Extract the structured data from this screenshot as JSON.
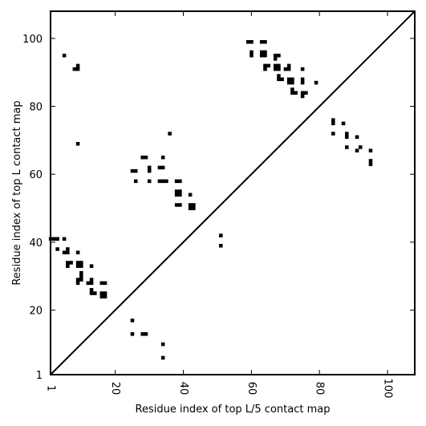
{
  "chart_data": {
    "type": "scatter",
    "title": "",
    "xlabel": "Residue index of top L/5 contact map",
    "ylabel": "Residue index of top L contact map",
    "xlim": [
      1,
      108
    ],
    "ylim": [
      1,
      108
    ],
    "xticks": [
      1,
      20,
      40,
      60,
      80,
      100
    ],
    "yticks": [
      1,
      20,
      40,
      60,
      80,
      100
    ],
    "xtick_labels": [
      "1",
      "20",
      "40",
      "60",
      "80",
      "100"
    ],
    "ytick_labels": [
      "1",
      "20",
      "40",
      "60",
      "80",
      "100"
    ],
    "grid": false,
    "diagonal": {
      "from": [
        1,
        1
      ],
      "to": [
        108,
        108
      ]
    },
    "upper_triangle_points": [
      [
        5,
        95
      ],
      [
        9,
        92
      ],
      [
        8,
        91
      ],
      [
        9,
        91
      ],
      [
        9,
        69
      ],
      [
        1,
        41
      ],
      [
        2,
        41
      ],
      [
        3,
        41
      ],
      [
        5,
        41
      ],
      [
        3,
        38
      ],
      [
        5,
        37
      ],
      [
        6,
        38
      ],
      [
        6,
        37
      ],
      [
        9,
        37
      ],
      [
        6,
        34
      ],
      [
        7,
        34
      ],
      [
        6,
        33
      ],
      [
        9,
        34
      ],
      [
        10,
        34
      ],
      [
        9,
        33
      ],
      [
        10,
        33
      ],
      [
        13,
        33
      ],
      [
        10,
        31
      ],
      [
        10,
        30
      ],
      [
        9,
        29
      ],
      [
        10,
        29
      ],
      [
        9,
        28
      ],
      [
        12,
        28
      ],
      [
        13,
        28
      ],
      [
        13,
        29
      ],
      [
        13,
        26
      ],
      [
        13,
        25
      ],
      [
        14,
        25
      ],
      [
        16,
        28
      ],
      [
        17,
        28
      ],
      [
        16,
        25
      ],
      [
        17,
        25
      ],
      [
        16,
        24
      ],
      [
        17,
        24
      ],
      [
        25,
        61
      ],
      [
        26,
        61
      ],
      [
        26,
        58
      ],
      [
        28,
        65
      ],
      [
        29,
        65
      ],
      [
        30,
        62
      ],
      [
        30,
        61
      ],
      [
        30,
        58
      ],
      [
        33,
        62
      ],
      [
        34,
        62
      ],
      [
        34,
        65
      ],
      [
        33,
        58
      ],
      [
        34,
        58
      ],
      [
        35,
        58
      ],
      [
        36,
        72
      ],
      [
        38,
        58
      ],
      [
        39,
        58
      ],
      [
        38,
        55
      ],
      [
        39,
        55
      ],
      [
        38,
        54
      ],
      [
        39,
        54
      ],
      [
        38,
        51
      ],
      [
        39,
        51
      ],
      [
        42,
        54
      ],
      [
        42,
        51
      ],
      [
        43,
        51
      ],
      [
        42,
        50
      ],
      [
        43,
        50
      ],
      [
        51,
        42
      ],
      [
        51,
        39
      ],
      [
        59,
        99
      ],
      [
        60,
        99
      ],
      [
        63,
        99
      ],
      [
        64,
        99
      ],
      [
        60,
        96
      ],
      [
        60,
        95
      ],
      [
        63,
        96
      ],
      [
        64,
        96
      ],
      [
        63,
        95
      ],
      [
        64,
        95
      ],
      [
        64,
        92
      ],
      [
        65,
        92
      ],
      [
        64,
        91
      ],
      [
        67,
        95
      ],
      [
        68,
        95
      ],
      [
        67,
        94
      ],
      [
        67,
        92
      ],
      [
        68,
        92
      ],
      [
        67,
        91
      ],
      [
        68,
        91
      ],
      [
        68,
        89
      ],
      [
        68,
        88
      ],
      [
        69,
        88
      ],
      [
        70,
        91
      ],
      [
        71,
        91
      ],
      [
        71,
        92
      ],
      [
        71,
        88
      ],
      [
        72,
        88
      ],
      [
        71,
        87
      ],
      [
        72,
        87
      ],
      [
        72,
        85
      ],
      [
        72,
        84
      ],
      [
        73,
        84
      ],
      [
        75,
        91
      ],
      [
        75,
        88
      ],
      [
        75,
        87
      ],
      [
        75,
        84
      ],
      [
        76,
        84
      ],
      [
        75,
        83
      ],
      [
        79,
        87
      ],
      [
        84,
        76
      ],
      [
        84,
        75
      ],
      [
        84,
        72
      ],
      [
        87,
        75
      ],
      [
        88,
        72
      ],
      [
        88,
        71
      ],
      [
        88,
        68
      ],
      [
        91,
        71
      ],
      [
        91,
        67
      ],
      [
        92,
        68
      ],
      [
        95,
        67
      ],
      [
        95,
        64
      ],
      [
        95,
        63
      ]
    ],
    "lower_triangle_points": [
      [
        25,
        17
      ],
      [
        25,
        13
      ],
      [
        28,
        13
      ],
      [
        29,
        13
      ],
      [
        34,
        10
      ],
      [
        34,
        6
      ]
    ]
  }
}
